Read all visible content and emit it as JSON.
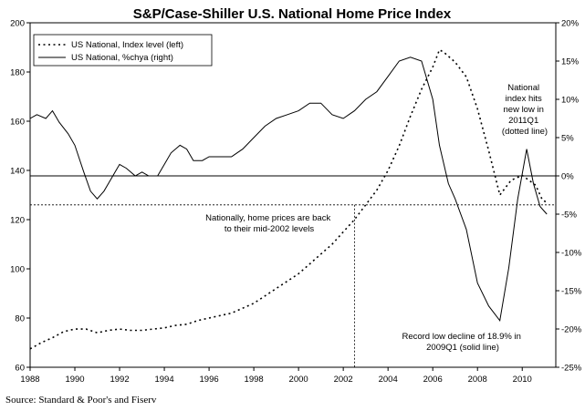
{
  "chart_data": {
    "type": "line",
    "title": "S&P/Case-Shiller U.S. National Home Price Index",
    "source": "Source: Standard & Poor's and Fiserv",
    "x_ticks": [
      "1988",
      "1990",
      "1992",
      "1994",
      "1996",
      "1998",
      "2000",
      "2002",
      "2004",
      "2006",
      "2008",
      "2010"
    ],
    "xlim": [
      1988,
      2011.5
    ],
    "y_left": {
      "ticks": [
        "60",
        "80",
        "100",
        "120",
        "140",
        "160",
        "180",
        "200"
      ],
      "lim": [
        60,
        200
      ]
    },
    "y_right": {
      "ticks": [
        "20%",
        "15%",
        "10%",
        "5%",
        "0%",
        "-5%",
        "-10%",
        "-15%",
        "-20%",
        "-25%"
      ],
      "lim": [
        -25,
        20
      ]
    },
    "legend": {
      "placement": "top-left",
      "entries": [
        "US National, Index level (left)",
        "US National, %chya (right)"
      ]
    },
    "series": [
      {
        "name": "US National, Index level (left)",
        "axis": "left",
        "style": "dotted",
        "points": [
          [
            1988.0,
            67.5
          ],
          [
            1988.5,
            70
          ],
          [
            1989.0,
            72
          ],
          [
            1989.5,
            74.5
          ],
          [
            1990.0,
            75.5
          ],
          [
            1990.5,
            75.5
          ],
          [
            1991.0,
            74
          ],
          [
            1991.5,
            75
          ],
          [
            1992.0,
            75.5
          ],
          [
            1992.5,
            75
          ],
          [
            1993.0,
            75
          ],
          [
            1993.5,
            75.5
          ],
          [
            1994.0,
            76
          ],
          [
            1994.5,
            77
          ],
          [
            1995.0,
            77.5
          ],
          [
            1995.5,
            79
          ],
          [
            1996.0,
            80
          ],
          [
            1996.5,
            81
          ],
          [
            1997.0,
            82
          ],
          [
            1997.5,
            84
          ],
          [
            1998.0,
            86
          ],
          [
            1998.5,
            89
          ],
          [
            1999.0,
            92
          ],
          [
            1999.5,
            95
          ],
          [
            2000.0,
            98
          ],
          [
            2000.5,
            102
          ],
          [
            2001.0,
            106
          ],
          [
            2001.5,
            110
          ],
          [
            2002.0,
            115
          ],
          [
            2002.5,
            120
          ],
          [
            2003.0,
            126
          ],
          [
            2003.5,
            132
          ],
          [
            2004.0,
            140
          ],
          [
            2004.5,
            150
          ],
          [
            2005.0,
            162
          ],
          [
            2005.5,
            173
          ],
          [
            2006.0,
            182
          ],
          [
            2006.3,
            189
          ],
          [
            2006.5,
            188
          ],
          [
            2007.0,
            184
          ],
          [
            2007.5,
            178
          ],
          [
            2008.0,
            165
          ],
          [
            2008.5,
            148
          ],
          [
            2009.0,
            130
          ],
          [
            2009.5,
            136
          ],
          [
            2010.0,
            138
          ],
          [
            2010.3,
            136
          ],
          [
            2010.6,
            134
          ],
          [
            2010.9,
            128
          ],
          [
            2011.1,
            127
          ]
        ]
      },
      {
        "name": "US National, %chya (right)",
        "axis": "right",
        "style": "solid",
        "points": [
          [
            1988.0,
            7.5
          ],
          [
            1988.3,
            8
          ],
          [
            1988.7,
            7.5
          ],
          [
            1989.0,
            8.5
          ],
          [
            1989.3,
            7
          ],
          [
            1989.7,
            5.5
          ],
          [
            1990.0,
            4
          ],
          [
            1990.4,
            0.5
          ],
          [
            1990.7,
            -2
          ],
          [
            1991.0,
            -3
          ],
          [
            1991.3,
            -2
          ],
          [
            1991.6,
            -0.5
          ],
          [
            1992.0,
            1.5
          ],
          [
            1992.3,
            1
          ],
          [
            1992.7,
            0
          ],
          [
            1993.0,
            0.5
          ],
          [
            1993.3,
            0
          ],
          [
            1993.7,
            0
          ],
          [
            1994.0,
            1.5
          ],
          [
            1994.3,
            3
          ],
          [
            1994.7,
            4
          ],
          [
            1995.0,
            3.5
          ],
          [
            1995.3,
            2
          ],
          [
            1995.7,
            2
          ],
          [
            1996.0,
            2.5
          ],
          [
            1996.5,
            2.5
          ],
          [
            1997.0,
            2.5
          ],
          [
            1997.5,
            3.5
          ],
          [
            1998.0,
            5
          ],
          [
            1998.5,
            6.5
          ],
          [
            1999.0,
            7.5
          ],
          [
            1999.5,
            8
          ],
          [
            2000.0,
            8.5
          ],
          [
            2000.5,
            9.5
          ],
          [
            2001.0,
            9.5
          ],
          [
            2001.5,
            8
          ],
          [
            2002.0,
            7.5
          ],
          [
            2002.5,
            8.5
          ],
          [
            2003.0,
            10
          ],
          [
            2003.5,
            11
          ],
          [
            2004.0,
            13
          ],
          [
            2004.5,
            15
          ],
          [
            2005.0,
            15.5
          ],
          [
            2005.5,
            15
          ],
          [
            2006.0,
            10
          ],
          [
            2006.3,
            4
          ],
          [
            2006.7,
            -1
          ],
          [
            2007.0,
            -3
          ],
          [
            2007.5,
            -7
          ],
          [
            2008.0,
            -14
          ],
          [
            2008.5,
            -17
          ],
          [
            2009.0,
            -18.9
          ],
          [
            2009.4,
            -12
          ],
          [
            2009.8,
            -3
          ],
          [
            2010.2,
            3.5
          ],
          [
            2010.5,
            -1
          ],
          [
            2010.8,
            -4
          ],
          [
            2011.1,
            -5
          ]
        ]
      }
    ],
    "reference_lines": [
      {
        "axis": "right",
        "value": 0
      },
      {
        "axis": "left",
        "value": 126
      },
      {
        "axis": "x",
        "value": 2002.5
      }
    ],
    "annotations": [
      {
        "lines": [
          "National",
          "index hits",
          "new low in",
          "2011Q1",
          "(dotted line)"
        ]
      },
      {
        "lines": [
          "Nationally, home prices are back",
          "to their mid-2002 levels"
        ]
      },
      {
        "lines": [
          "Record low decline of 18.9% in",
          "2009Q1 (solid line)"
        ]
      }
    ]
  }
}
